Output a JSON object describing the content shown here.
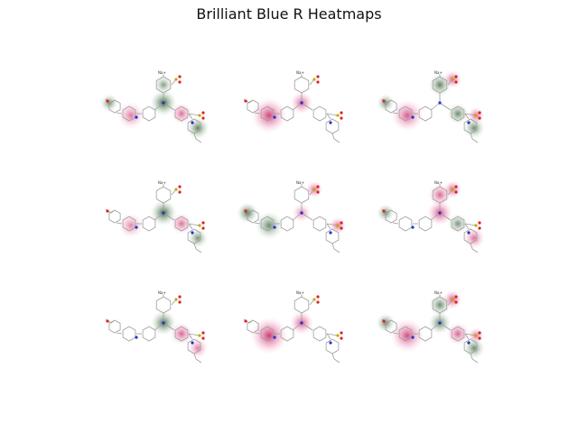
{
  "figure": {
    "title": "Brilliant Blue R Heatmaps"
  },
  "chart_data": {
    "type": "heatmap",
    "title": "Brilliant Blue R Heatmaps",
    "grid": {
      "rows": 3,
      "cols": 3
    },
    "counter_ion_label": "Na+",
    "colors": {
      "positive": "#c2185b",
      "negative": "#2e5a2e",
      "bond": "#9e9e9e",
      "nitrogen": "#2233cc",
      "oxygen": "#dd2222",
      "sulfur": "#c8a800"
    },
    "panels": [
      {
        "highlights": [
          {
            "region": "ring_top",
            "sign": "negative",
            "strength": 0.3
          },
          {
            "region": "center",
            "sign": "negative",
            "strength": 0.9
          },
          {
            "region": "ring_right",
            "sign": "positive",
            "strength": 0.5
          },
          {
            "region": "ethoxy",
            "sign": "negative",
            "strength": 0.5
          },
          {
            "region": "ring_lower",
            "sign": "negative",
            "strength": 0.6
          },
          {
            "region": "ring_left",
            "sign": "positive",
            "strength": 0.4
          }
        ]
      },
      {
        "highlights": [
          {
            "region": "ring_left",
            "sign": "positive",
            "strength": 0.9
          },
          {
            "region": "center",
            "sign": "positive",
            "strength": 0.6
          }
        ]
      },
      {
        "highlights": [
          {
            "region": "ring_top",
            "sign": "negative",
            "strength": 0.6
          },
          {
            "region": "so3_top",
            "sign": "positive",
            "strength": 0.7
          },
          {
            "region": "ring_left",
            "sign": "positive",
            "strength": 0.7
          },
          {
            "region": "ring_right",
            "sign": "negative",
            "strength": 0.5
          },
          {
            "region": "so3_right",
            "sign": "positive",
            "strength": 0.6
          },
          {
            "region": "ethoxy",
            "sign": "negative",
            "strength": 0.5
          },
          {
            "region": "ring_lower",
            "sign": "negative",
            "strength": 0.5
          }
        ]
      },
      {
        "highlights": [
          {
            "region": "center",
            "sign": "negative",
            "strength": 0.9
          },
          {
            "region": "ring_right",
            "sign": "positive",
            "strength": 0.5
          },
          {
            "region": "ring_lower",
            "sign": "negative",
            "strength": 0.4
          },
          {
            "region": "ring_left",
            "sign": "positive",
            "strength": 0.3
          }
        ]
      },
      {
        "highlights": [
          {
            "region": "ethoxy",
            "sign": "negative",
            "strength": 0.8
          },
          {
            "region": "ring_left",
            "sign": "negative",
            "strength": 0.5
          },
          {
            "region": "so3_top",
            "sign": "positive",
            "strength": 0.6
          },
          {
            "region": "so3_right",
            "sign": "positive",
            "strength": 0.6
          },
          {
            "region": "center",
            "sign": "positive",
            "strength": 0.3
          }
        ]
      },
      {
        "highlights": [
          {
            "region": "ethoxy",
            "sign": "negative",
            "strength": 0.5
          },
          {
            "region": "so3_top",
            "sign": "positive",
            "strength": 0.7
          },
          {
            "region": "ring_top",
            "sign": "positive",
            "strength": 0.6
          },
          {
            "region": "center",
            "sign": "positive",
            "strength": 0.8
          },
          {
            "region": "ring_right",
            "sign": "negative",
            "strength": 0.4
          },
          {
            "region": "ring_lower",
            "sign": "positive",
            "strength": 0.5
          }
        ]
      },
      {
        "highlights": [
          {
            "region": "center",
            "sign": "negative",
            "strength": 0.8
          },
          {
            "region": "ring_right",
            "sign": "positive",
            "strength": 0.6
          },
          {
            "region": "ring_lower",
            "sign": "positive",
            "strength": 0.4
          }
        ]
      },
      {
        "highlights": [
          {
            "region": "ring_left",
            "sign": "positive",
            "strength": 1.0
          },
          {
            "region": "center",
            "sign": "positive",
            "strength": 0.7
          }
        ]
      },
      {
        "highlights": [
          {
            "region": "ring_top",
            "sign": "negative",
            "strength": 0.5
          },
          {
            "region": "so3_top",
            "sign": "positive",
            "strength": 0.8
          },
          {
            "region": "ring_left",
            "sign": "positive",
            "strength": 0.8
          },
          {
            "region": "center",
            "sign": "negative",
            "strength": 0.6
          },
          {
            "region": "ring_right",
            "sign": "positive",
            "strength": 0.6
          },
          {
            "region": "so3_right",
            "sign": "positive",
            "strength": 0.5
          },
          {
            "region": "ethoxy",
            "sign": "negative",
            "strength": 0.6
          },
          {
            "region": "ring_lower",
            "sign": "negative",
            "strength": 0.5
          }
        ]
      }
    ]
  }
}
